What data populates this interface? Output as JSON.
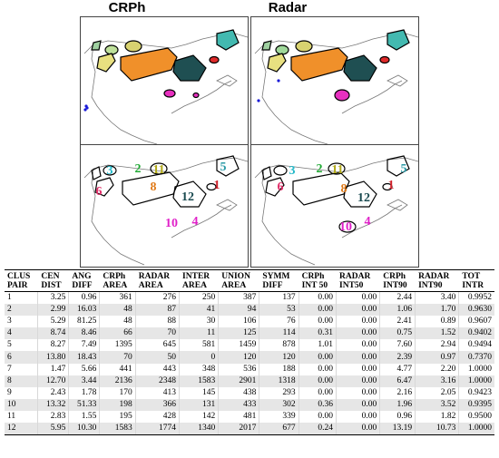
{
  "titles": {
    "left": "CRPh",
    "right": "Radar"
  },
  "cluster_labels": [
    {
      "id": "1",
      "color": "#d0202a"
    },
    {
      "id": "2",
      "color": "#1ea832"
    },
    {
      "id": "3",
      "color": "#22b8c8"
    },
    {
      "id": "4",
      "color": "#e020c8"
    },
    {
      "id": "5",
      "color": "#2a9aa6"
    },
    {
      "id": "6",
      "color": "#e0306a"
    },
    {
      "id": "8",
      "color": "#e07a18"
    },
    {
      "id": "10",
      "color": "#e020c8"
    },
    {
      "id": "11",
      "color": "#b0a818"
    },
    {
      "id": "12",
      "color": "#1a4a50"
    }
  ],
  "table": {
    "headers": [
      [
        "CLUS",
        "PAIR"
      ],
      [
        "CEN",
        "DIST"
      ],
      [
        "ANG",
        "DIFF"
      ],
      [
        "CRPh",
        "AREA"
      ],
      [
        "RADAR",
        "AREA"
      ],
      [
        "INTER",
        "AREA"
      ],
      [
        "UNION",
        "AREA"
      ],
      [
        "SYMM",
        "DIFF"
      ],
      [
        "CRPh",
        "INT 50"
      ],
      [
        "RADAR",
        "INT50"
      ],
      [
        "CRPh",
        "INT90"
      ],
      [
        "RADAR",
        "INT90"
      ],
      [
        "TOT",
        "INTR"
      ]
    ],
    "rows": [
      [
        "1",
        "3.25",
        "0.96",
        "361",
        "276",
        "250",
        "387",
        "137",
        "0.00",
        "0.00",
        "2.44",
        "3.40",
        "0.9952"
      ],
      [
        "2",
        "2.99",
        "16.03",
        "48",
        "87",
        "41",
        "94",
        "53",
        "0.00",
        "0.00",
        "1.06",
        "1.70",
        "0.9630"
      ],
      [
        "3",
        "5.29",
        "81.25",
        "48",
        "88",
        "30",
        "106",
        "76",
        "0.00",
        "0.00",
        "2.41",
        "0.89",
        "0.9607"
      ],
      [
        "4",
        "8.74",
        "8.46",
        "66",
        "70",
        "11",
        "125",
        "114",
        "0.31",
        "0.00",
        "0.75",
        "1.52",
        "0.9402"
      ],
      [
        "5",
        "8.27",
        "7.49",
        "1395",
        "645",
        "581",
        "1459",
        "878",
        "1.01",
        "0.00",
        "7.60",
        "2.94",
        "0.9494"
      ],
      [
        "6",
        "13.80",
        "18.43",
        "70",
        "50",
        "0",
        "120",
        "120",
        "0.00",
        "0.00",
        "2.39",
        "0.97",
        "0.7370"
      ],
      [
        "7",
        "1.47",
        "5.66",
        "441",
        "443",
        "348",
        "536",
        "188",
        "0.00",
        "0.00",
        "4.77",
        "2.20",
        "1.0000"
      ],
      [
        "8",
        "12.70",
        "3.44",
        "2136",
        "2348",
        "1583",
        "2901",
        "1318",
        "0.00",
        "0.00",
        "6.47",
        "3.16",
        "1.0000"
      ],
      [
        "9",
        "2.43",
        "1.78",
        "170",
        "413",
        "145",
        "438",
        "293",
        "0.00",
        "0.00",
        "2.16",
        "2.05",
        "0.9423"
      ],
      [
        "10",
        "13.32",
        "51.33",
        "198",
        "366",
        "131",
        "433",
        "302",
        "0.36",
        "0.00",
        "1.96",
        "3.52",
        "0.9395"
      ],
      [
        "11",
        "2.83",
        "1.55",
        "195",
        "428",
        "142",
        "481",
        "339",
        "0.00",
        "0.00",
        "0.96",
        "1.82",
        "0.9500"
      ],
      [
        "12",
        "5.95",
        "10.30",
        "1583",
        "1774",
        "1340",
        "2017",
        "677",
        "0.24",
        "0.00",
        "13.19",
        "10.73",
        "1.0000"
      ]
    ]
  }
}
